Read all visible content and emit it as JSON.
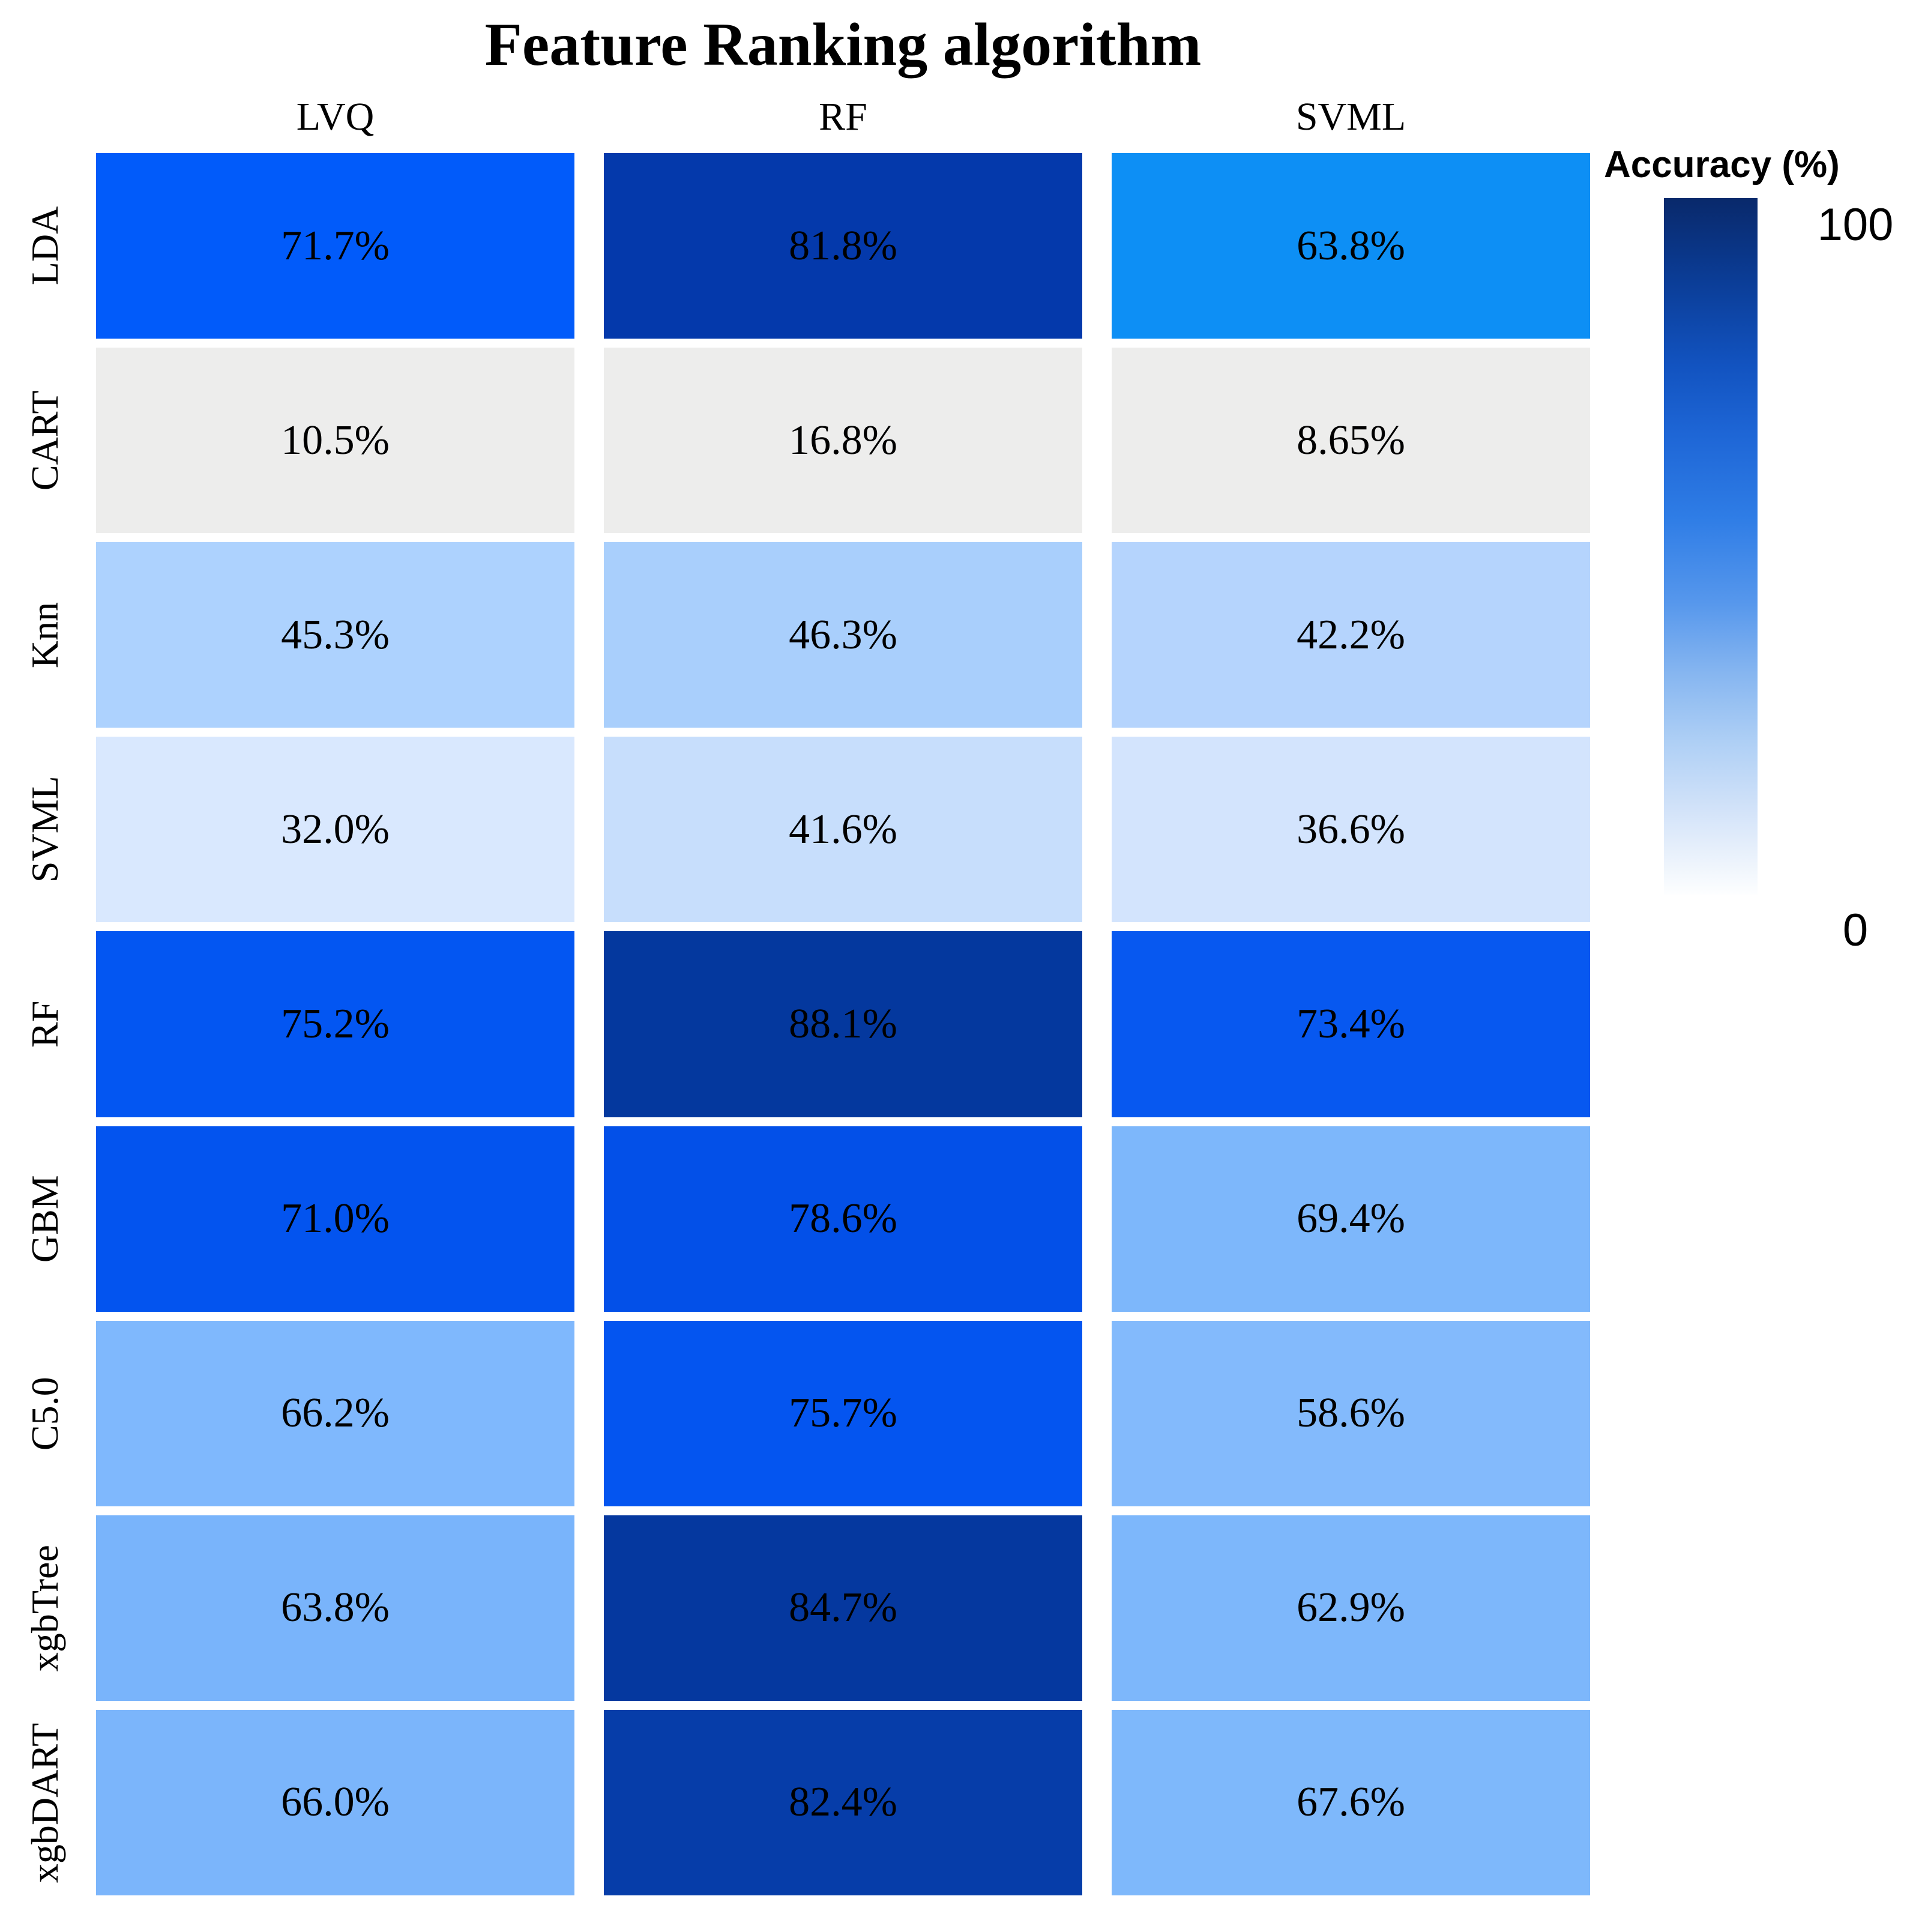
{
  "title": "Feature Ranking algorithm",
  "columns": [
    "LVQ",
    "RF",
    "SVML"
  ],
  "rows": [
    "LDA",
    "CART",
    "Knn",
    "SVML",
    "RF",
    "GBM",
    "C5.0",
    "xgbTree",
    "xgbDART"
  ],
  "cells": [
    [
      {
        "label": "71.7%",
        "color": "#015BFA"
      },
      {
        "label": "81.8%",
        "color": "#0439AB"
      },
      {
        "label": "63.8%",
        "color": "#0D8FF5"
      }
    ],
    [
      {
        "label": "10.5%",
        "color": "#EDEDEC"
      },
      {
        "label": "16.8%",
        "color": "#EDEDEC"
      },
      {
        "label": "8.65%",
        "color": "#EDEDEC"
      }
    ],
    [
      {
        "label": "45.3%",
        "color": "#ADD2FE"
      },
      {
        "label": "46.3%",
        "color": "#A9CFFC"
      },
      {
        "label": "42.2%",
        "color": "#B5D4FD"
      }
    ],
    [
      {
        "label": "32.0%",
        "color": "#D9E8FE"
      },
      {
        "label": "41.6%",
        "color": "#C7DEFC"
      },
      {
        "label": "36.6%",
        "color": "#D3E4FD"
      }
    ],
    [
      {
        "label": "75.2%",
        "color": "#0356F2"
      },
      {
        "label": "88.1%",
        "color": "#04389E"
      },
      {
        "label": "73.4%",
        "color": "#0758F0"
      }
    ],
    [
      {
        "label": "71.0%",
        "color": "#0354EF"
      },
      {
        "label": "78.6%",
        "color": "#0350E8"
      },
      {
        "label": "69.4%",
        "color": "#7DB7FB"
      }
    ],
    [
      {
        "label": "66.2%",
        "color": "#7FB8FD"
      },
      {
        "label": "75.7%",
        "color": "#0455F0"
      },
      {
        "label": "58.6%",
        "color": "#83BAFC"
      }
    ],
    [
      {
        "label": "63.8%",
        "color": "#79B4FB"
      },
      {
        "label": "84.7%",
        "color": "#05389F"
      },
      {
        "label": "62.9%",
        "color": "#7DB7FB"
      }
    ],
    [
      {
        "label": "66.0%",
        "color": "#7BB5FB"
      },
      {
        "label": "82.4%",
        "color": "#063DA9"
      },
      {
        "label": "67.6%",
        "color": "#7EB8FB"
      }
    ]
  ],
  "legend": {
    "title": "Accuracy (%)",
    "max_label": "100",
    "min_label": "0",
    "gradient_stops": [
      "#09296B 0%",
      "#0B3D97 12%",
      "#1253C0 24%",
      "#1E66D6 34%",
      "#2F7DE6 46%",
      "#5697EC 58%",
      "#85B5F0 68%",
      "#AECFF5 78%",
      "#D3E3F9 88%",
      "#EFF5FC 96%",
      "#FDFEFF 100%"
    ]
  },
  "chart_data": {
    "type": "heatmap",
    "title": "Feature Ranking algorithm",
    "columns": [
      "LVQ",
      "RF",
      "SVML"
    ],
    "rows": [
      "LDA",
      "CART",
      "Knn",
      "SVML",
      "RF",
      "GBM",
      "C5.0",
      "xgbTree",
      "xgbDART"
    ],
    "values_percent": [
      [
        71.7,
        81.8,
        63.8
      ],
      [
        10.5,
        16.8,
        8.65
      ],
      [
        45.3,
        46.3,
        42.2
      ],
      [
        32.0,
        41.6,
        36.6
      ],
      [
        75.2,
        88.1,
        73.4
      ],
      [
        71.0,
        78.6,
        69.4
      ],
      [
        66.2,
        75.7,
        58.6
      ],
      [
        63.8,
        84.7,
        62.9
      ],
      [
        66.0,
        82.4,
        67.6
      ]
    ],
    "legend": {
      "title": "Accuracy (%)",
      "range": [
        0,
        100
      ],
      "colormap": "white-to-dark-blue"
    },
    "layout": {
      "grid": "3 columns x 9 rows",
      "legend_position": "right",
      "row_labels_rotated": true
    }
  }
}
